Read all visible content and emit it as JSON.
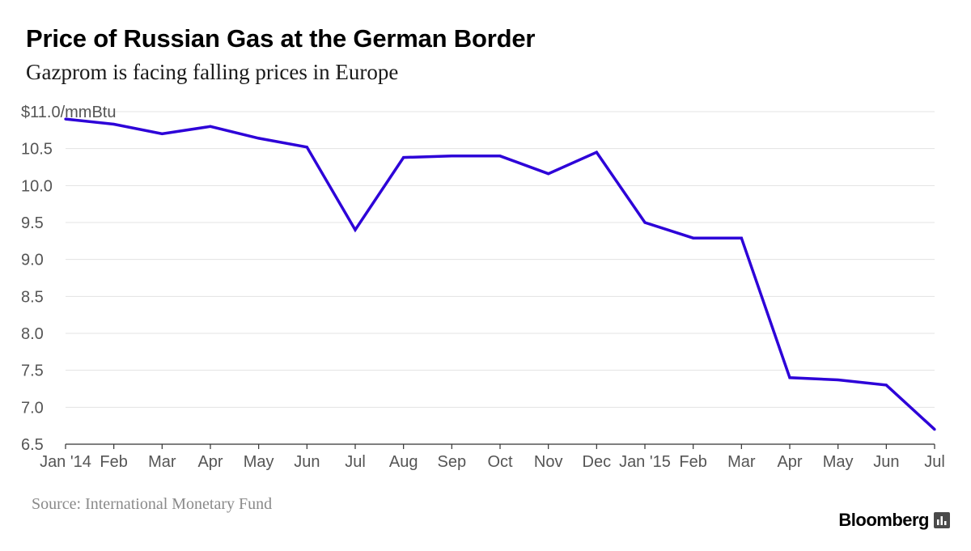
{
  "header": {
    "title": "Price of Russian Gas at the German Border",
    "subtitle": "Gazprom is facing falling prices in Europe"
  },
  "footer": {
    "source": "Source: International Monetary Fund",
    "brand": "Bloomberg",
    "brand_icon": "bloomberg-bars-icon"
  },
  "chart_data": {
    "type": "line",
    "title": "Price of Russian Gas at the German Border",
    "subtitle": "Gazprom is facing falling prices in Europe",
    "xlabel": "",
    "ylabel": "",
    "ylim": [
      6.5,
      11.0
    ],
    "grid": true,
    "categories": [
      "Jan '14",
      "Feb",
      "Mar",
      "Apr",
      "May",
      "Jun",
      "Jul",
      "Aug",
      "Sep",
      "Oct",
      "Nov",
      "Dec",
      "Jan '15",
      "Feb",
      "Mar",
      "Apr",
      "May",
      "Jun",
      "Jul"
    ],
    "y_ticks": [
      11.0,
      10.5,
      10.0,
      9.5,
      9.0,
      8.5,
      8.0,
      7.5,
      7.0,
      6.5
    ],
    "y_tick_labels": [
      "$11.0/mmBtu",
      "10.5",
      "10.0",
      "9.5",
      "9.0",
      "8.5",
      "8.0",
      "7.5",
      "7.0",
      "6.5"
    ],
    "series": [
      {
        "color": "#2d00d8",
        "values": [
          10.9,
          10.83,
          10.7,
          10.8,
          10.64,
          10.52,
          9.4,
          10.38,
          10.4,
          10.4,
          10.16,
          10.45,
          9.5,
          9.29,
          9.29,
          7.4,
          7.37,
          7.3,
          6.7
        ]
      }
    ]
  }
}
